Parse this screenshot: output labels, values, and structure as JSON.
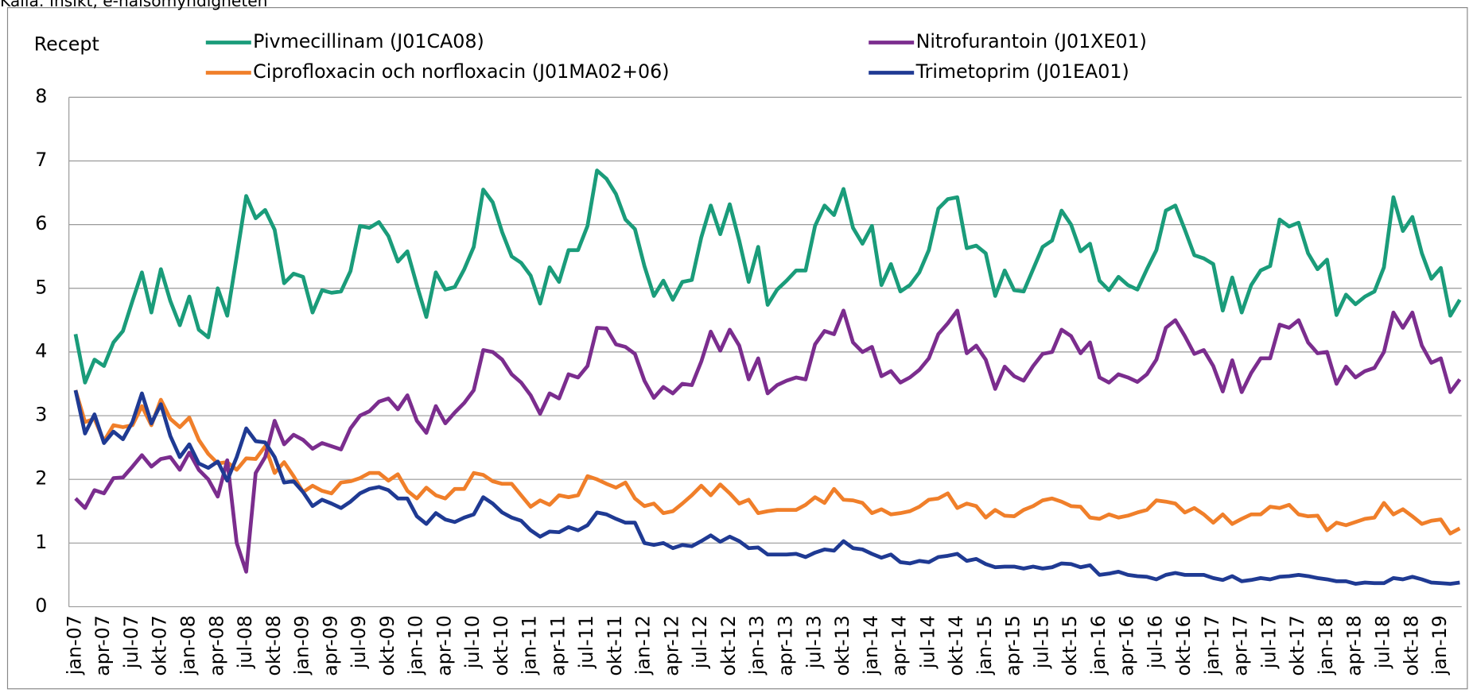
{
  "chart_data": {
    "type": "line",
    "source": "Källa: Insikt, e-hälsomyndigheten",
    "y_label": "Recept",
    "categories": [
      "jan-07",
      null,
      null,
      "apr-07",
      null,
      null,
      "jul-07",
      null,
      null,
      "okt-07",
      null,
      null,
      "jan-08",
      null,
      null,
      "apr-08",
      null,
      null,
      "jul-08",
      null,
      null,
      "okt-08",
      null,
      null,
      "jan-09",
      null,
      null,
      "apr-09",
      null,
      null,
      "jul-09",
      null,
      null,
      "okt-09",
      null,
      null,
      "jan-10",
      null,
      null,
      "apr-10",
      null,
      null,
      "jul-10",
      null,
      null,
      "okt-10",
      null,
      null,
      "jan-11",
      null,
      null,
      "apr-11",
      null,
      null,
      "jul-11",
      null,
      null,
      "okt-11",
      null,
      null,
      "jan-12",
      null,
      null,
      "apr-12",
      null,
      null,
      "jul-12",
      null,
      null,
      "okt-12",
      null,
      null,
      "jan-13",
      null,
      null,
      "apr-13",
      null,
      null,
      "jul-13",
      null,
      null,
      "okt-13",
      null,
      null,
      "jan-14",
      null,
      null,
      "apr-14",
      null,
      null,
      "jul-14",
      null,
      null,
      "okt-14",
      null,
      null,
      "jan-15",
      null,
      null,
      "apr-15",
      null,
      null,
      "jul-15",
      null,
      null,
      "okt-15",
      null,
      null,
      "jan-16",
      null,
      null,
      "apr-16",
      null,
      null,
      "jul-16",
      null,
      null,
      "okt-16",
      null,
      null,
      "jan-17",
      null,
      null,
      "apr-17",
      null,
      null,
      "jul-17",
      null,
      null,
      "okt-17",
      null,
      null,
      "jan-18",
      null,
      null,
      "apr-18",
      null,
      null,
      "jul-18",
      null,
      null,
      "okt-18",
      null,
      null,
      "jan-19",
      null,
      null
    ],
    "series": [
      {
        "name": "Pivmecillinam (J01CA08)",
        "color": "#1a9c7a",
        "values": [
          4.28,
          3.52,
          3.88,
          3.78,
          4.15,
          4.33,
          4.8,
          5.25,
          4.62,
          5.3,
          4.8,
          4.42,
          4.87,
          4.35,
          4.23,
          5.0,
          4.57,
          5.5,
          6.45,
          6.1,
          6.23,
          5.92,
          5.08,
          5.23,
          5.18,
          4.62,
          4.97,
          4.93,
          4.95,
          5.27,
          5.98,
          5.95,
          6.04,
          5.82,
          5.42,
          5.58,
          5.05,
          4.55,
          5.25,
          4.98,
          5.02,
          5.3,
          5.65,
          6.55,
          6.35,
          5.88,
          5.5,
          5.4,
          5.2,
          4.76,
          5.33,
          5.1,
          5.6,
          5.6,
          5.98,
          6.85,
          6.72,
          6.48,
          6.08,
          5.93,
          5.35,
          4.88,
          5.12,
          4.82,
          5.1,
          5.13,
          5.8,
          6.3,
          5.85,
          6.32,
          5.75,
          5.1,
          5.65,
          4.74,
          4.98,
          5.12,
          5.28,
          5.28,
          5.98,
          6.3,
          6.15,
          6.56,
          5.95,
          5.7,
          5.98,
          5.05,
          5.38,
          4.95,
          5.05,
          5.25,
          5.6,
          6.25,
          6.4,
          6.43,
          5.63,
          5.67,
          5.55,
          4.88,
          5.28,
          4.97,
          4.95,
          5.3,
          5.65,
          5.75,
          6.22,
          6.0,
          5.58,
          5.7,
          5.12,
          4.97,
          5.18,
          5.05,
          4.98,
          5.3,
          5.6,
          6.22,
          6.3,
          5.92,
          5.52,
          5.47,
          5.38,
          4.65,
          5.17,
          4.62,
          5.05,
          5.28,
          5.35,
          6.08,
          5.97,
          6.03,
          5.55,
          5.3,
          5.45,
          4.58,
          4.9,
          4.75,
          4.87,
          4.95,
          5.33,
          6.43,
          5.9,
          6.12,
          5.55,
          5.15,
          5.32,
          4.57,
          4.82
        ]
      },
      {
        "name": "Ciprofloxacin och norfloxacin (J01MA02+06)",
        "color": "#f07f2a",
        "values": [
          3.4,
          2.9,
          2.95,
          2.6,
          2.85,
          2.82,
          2.85,
          3.15,
          2.85,
          3.25,
          2.95,
          2.82,
          2.97,
          2.62,
          2.4,
          2.25,
          2.27,
          2.15,
          2.33,
          2.32,
          2.52,
          2.1,
          2.27,
          2.05,
          1.8,
          1.9,
          1.82,
          1.78,
          1.95,
          1.97,
          2.02,
          2.1,
          2.1,
          1.98,
          2.08,
          1.82,
          1.7,
          1.87,
          1.75,
          1.7,
          1.85,
          1.85,
          2.1,
          2.07,
          1.97,
          1.93,
          1.93,
          1.75,
          1.57,
          1.67,
          1.6,
          1.75,
          1.72,
          1.75,
          2.05,
          2.0,
          1.93,
          1.87,
          1.95,
          1.7,
          1.58,
          1.62,
          1.47,
          1.5,
          1.62,
          1.75,
          1.9,
          1.75,
          1.92,
          1.78,
          1.62,
          1.68,
          1.47,
          1.5,
          1.52,
          1.52,
          1.52,
          1.6,
          1.72,
          1.63,
          1.85,
          1.68,
          1.67,
          1.63,
          1.47,
          1.53,
          1.45,
          1.47,
          1.5,
          1.57,
          1.68,
          1.7,
          1.78,
          1.55,
          1.62,
          1.58,
          1.4,
          1.52,
          1.43,
          1.42,
          1.52,
          1.58,
          1.67,
          1.7,
          1.65,
          1.58,
          1.57,
          1.4,
          1.38,
          1.45,
          1.4,
          1.43,
          1.48,
          1.52,
          1.67,
          1.65,
          1.62,
          1.48,
          1.55,
          1.45,
          1.32,
          1.45,
          1.3,
          1.38,
          1.45,
          1.45,
          1.57,
          1.55,
          1.6,
          1.45,
          1.42,
          1.43,
          1.2,
          1.32,
          1.28,
          1.33,
          1.38,
          1.4,
          1.63,
          1.45,
          1.53,
          1.42,
          1.3,
          1.35,
          1.37,
          1.15,
          1.23
        ]
      },
      {
        "name": "Nitrofurantoin (J01XE01)",
        "color": "#7b2d8e",
        "values": [
          1.7,
          1.55,
          1.83,
          1.78,
          2.02,
          2.03,
          2.2,
          2.38,
          2.2,
          2.32,
          2.35,
          2.15,
          2.42,
          2.15,
          2.0,
          1.73,
          2.3,
          1.0,
          0.55,
          2.1,
          2.35,
          2.92,
          2.55,
          2.7,
          2.62,
          2.48,
          2.57,
          2.52,
          2.47,
          2.8,
          3.0,
          3.07,
          3.22,
          3.27,
          3.1,
          3.32,
          2.92,
          2.73,
          3.15,
          2.88,
          3.05,
          3.2,
          3.4,
          4.03,
          4.0,
          3.88,
          3.65,
          3.52,
          3.32,
          3.03,
          3.35,
          3.27,
          3.65,
          3.6,
          3.78,
          4.38,
          4.37,
          4.12,
          4.08,
          3.97,
          3.55,
          3.28,
          3.45,
          3.35,
          3.5,
          3.48,
          3.85,
          4.32,
          4.02,
          4.35,
          4.1,
          3.57,
          3.9,
          3.35,
          3.48,
          3.55,
          3.6,
          3.57,
          4.12,
          4.33,
          4.28,
          4.65,
          4.15,
          4.0,
          4.08,
          3.62,
          3.7,
          3.52,
          3.6,
          3.72,
          3.9,
          4.28,
          4.45,
          4.65,
          3.98,
          4.1,
          3.88,
          3.42,
          3.77,
          3.62,
          3.55,
          3.78,
          3.97,
          4.0,
          4.35,
          4.25,
          3.98,
          4.15,
          3.6,
          3.52,
          3.65,
          3.6,
          3.53,
          3.65,
          3.88,
          4.38,
          4.5,
          4.25,
          3.97,
          4.03,
          3.78,
          3.38,
          3.87,
          3.37,
          3.67,
          3.9,
          3.9,
          4.43,
          4.38,
          4.5,
          4.15,
          3.98,
          4.0,
          3.5,
          3.77,
          3.6,
          3.7,
          3.75,
          4.0,
          4.62,
          4.38,
          4.62,
          4.1,
          3.83,
          3.9,
          3.37,
          3.57
        ]
      },
      {
        "name": "Trimetoprim (J01EA01)",
        "color": "#1f3a93",
        "values": [
          3.4,
          2.72,
          3.02,
          2.57,
          2.75,
          2.63,
          2.9,
          3.35,
          2.88,
          3.18,
          2.68,
          2.35,
          2.55,
          2.25,
          2.18,
          2.28,
          1.98,
          2.35,
          2.8,
          2.6,
          2.58,
          2.35,
          1.95,
          1.97,
          1.8,
          1.58,
          1.68,
          1.62,
          1.55,
          1.65,
          1.78,
          1.85,
          1.88,
          1.83,
          1.7,
          1.7,
          1.42,
          1.3,
          1.47,
          1.37,
          1.33,
          1.4,
          1.45,
          1.72,
          1.62,
          1.48,
          1.4,
          1.35,
          1.2,
          1.1,
          1.18,
          1.17,
          1.25,
          1.2,
          1.28,
          1.48,
          1.45,
          1.38,
          1.32,
          1.32,
          1.0,
          0.97,
          1.0,
          0.92,
          0.97,
          0.95,
          1.03,
          1.12,
          1.02,
          1.1,
          1.03,
          0.92,
          0.93,
          0.82,
          0.82,
          0.82,
          0.83,
          0.78,
          0.85,
          0.9,
          0.88,
          1.03,
          0.92,
          0.9,
          0.83,
          0.77,
          0.82,
          0.7,
          0.68,
          0.72,
          0.7,
          0.78,
          0.8,
          0.83,
          0.72,
          0.75,
          0.67,
          0.62,
          0.63,
          0.63,
          0.6,
          0.63,
          0.6,
          0.62,
          0.68,
          0.67,
          0.62,
          0.65,
          0.5,
          0.52,
          0.55,
          0.5,
          0.48,
          0.47,
          0.43,
          0.5,
          0.53,
          0.5,
          0.5,
          0.5,
          0.45,
          0.42,
          0.48,
          0.4,
          0.42,
          0.45,
          0.43,
          0.47,
          0.48,
          0.5,
          0.48,
          0.45,
          0.43,
          0.4,
          0.4,
          0.36,
          0.38,
          0.37,
          0.37,
          0.45,
          0.43,
          0.47,
          0.43,
          0.38,
          0.37,
          0.36,
          0.38
        ]
      }
    ],
    "ylim": [
      0,
      8
    ],
    "yticks": [
      0,
      1,
      2,
      3,
      4,
      5,
      6,
      7,
      8
    ],
    "grid": true
  }
}
